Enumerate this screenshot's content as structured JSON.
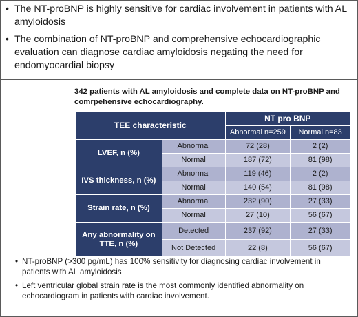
{
  "top_bullets": [
    "The NT-proBNP is highly sensitive for cardiac involvement in patients with AL amyloidosis",
    "The combination of NT-proBNP and comprehensive echocardiographic evaluation can diagnose cardiac amyloidosis negating the need for endomyocardial biopsy"
  ],
  "table": {
    "caption": "342 patients with AL amyloidosis and complete data on NT-proBNP and comrpehensive echocardiography.",
    "corner_header": "TEE characteristic",
    "group_header": "NT pro BNP",
    "col_abnormal": "Abnormal n=259",
    "col_normal": "Normal n=83",
    "rows": [
      {
        "group": "LVEF, n (%)",
        "sub1": "Abnormal",
        "a1": "72 (28)",
        "n1": "2 (2)",
        "sub2": "Normal",
        "a2": "187 (72)",
        "n2": "81 (98)"
      },
      {
        "group": "IVS thickness, n (%)",
        "sub1": "Abnormal",
        "a1": "119 (46)",
        "n1": "2 (2)",
        "sub2": "Normal",
        "a2": "140 (54)",
        "n2": "81 (98)"
      },
      {
        "group": "Strain rate, n (%)",
        "sub1": "Abnormal",
        "a1": "232 (90)",
        "n1": "27 (33)",
        "sub2": "Normal",
        "a2": "27 (10)",
        "n2": "56 (67)"
      },
      {
        "group": "Any abnormality on TTE, n (%)",
        "sub1": "Detected",
        "a1": "237 (92)",
        "n1": "27 (33)",
        "sub2": "Not Detected",
        "a2": "22 (8)",
        "n2": "56 (67)"
      }
    ]
  },
  "bottom_bullets": [
    "NT-proBNP (>300 pg/mL) has 100% sensitivity for diagnosing cardiac involvement in patients with AL amyloidosis",
    "Left ventricular global strain rate is the most commonly identified abnormality on echocardiogram in patients with cardiac involvement."
  ],
  "colors": {
    "header_navy": "#2c3e6b",
    "cell_dark": "#aeb2cf",
    "cell_light": "#c5c8de"
  }
}
